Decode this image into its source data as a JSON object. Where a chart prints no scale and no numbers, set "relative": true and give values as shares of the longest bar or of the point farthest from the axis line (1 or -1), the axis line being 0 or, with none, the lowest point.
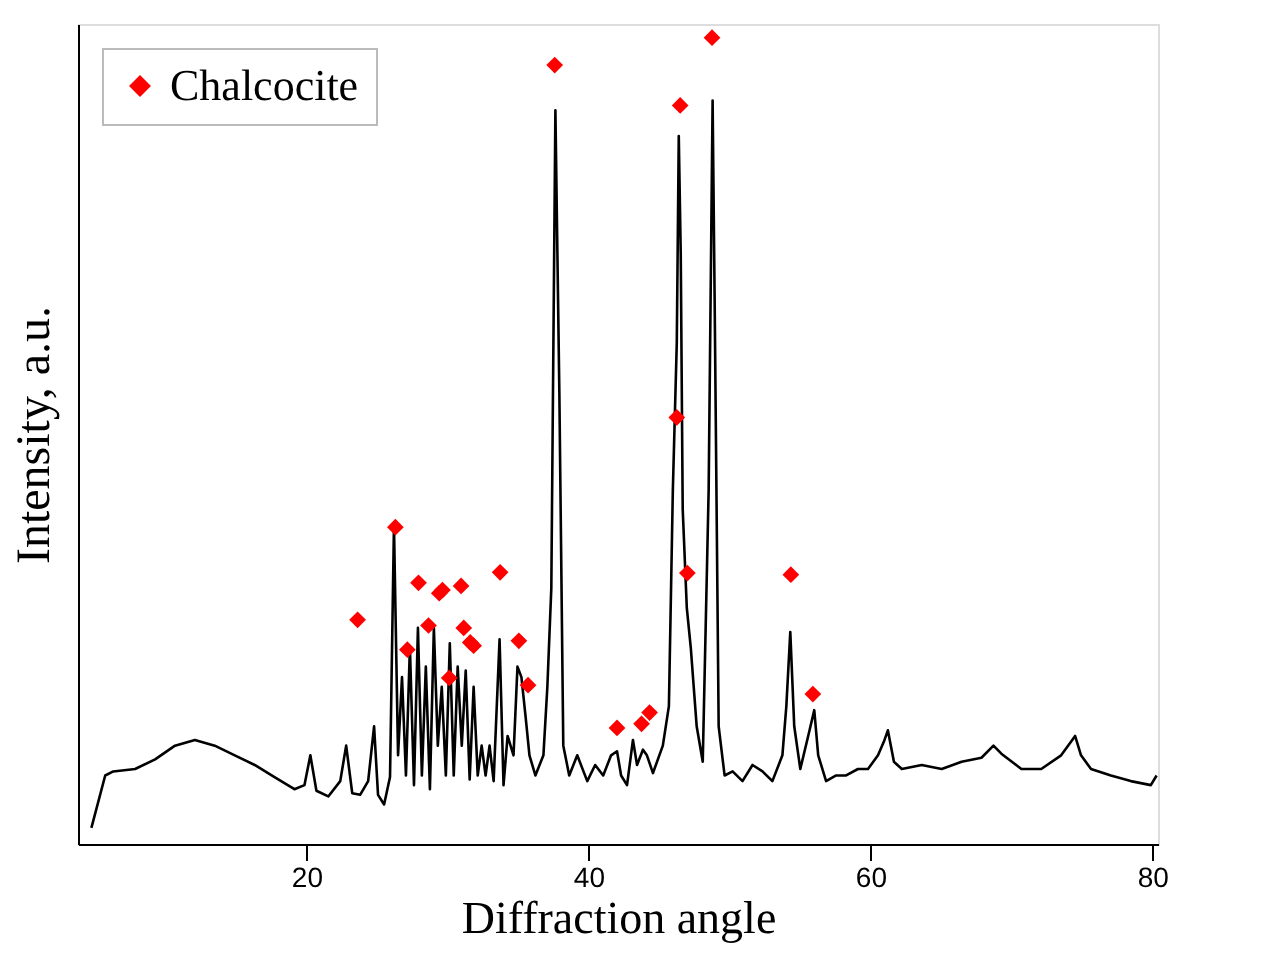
{
  "chart_data": {
    "type": "line",
    "relative": true,
    "xlabel": "Diffraction angle",
    "ylabel": "Intensity, a.u.",
    "xlim": [
      3.8,
      80.4
    ],
    "xticks": [
      20,
      40,
      60,
      80
    ],
    "tick_labels": "x",
    "grid": false,
    "legend": "top left",
    "series": [
      {
        "color": "#000000",
        "marker": "none",
        "line_style": "solid",
        "x": [
          4.75,
          5.73,
          6.3,
          7.85,
          9.27,
          10.68,
          12.09,
          13.5,
          14.92,
          16.33,
          17.74,
          19.15,
          19.86,
          20.28,
          20.71,
          21.55,
          22.4,
          22.82,
          23.25,
          23.81,
          24.38,
          24.8,
          25.08,
          25.51,
          25.93,
          26.21,
          26.5,
          26.78,
          27.06,
          27.34,
          27.63,
          27.91,
          28.19,
          28.47,
          28.76,
          29.04,
          29.32,
          29.6,
          29.89,
          30.17,
          30.45,
          30.73,
          31.02,
          31.3,
          31.58,
          31.86,
          32.15,
          32.43,
          32.71,
          32.99,
          33.28,
          33.7,
          33.98,
          34.27,
          34.69,
          34.97,
          35.25,
          35.54,
          35.82,
          36.24,
          36.81,
          37.09,
          37.37,
          37.66,
          37.94,
          38.22,
          38.64,
          39.21,
          39.92,
          40.48,
          41.05,
          41.61,
          42.03,
          42.32,
          42.74,
          43.16,
          43.45,
          43.87,
          44.15,
          44.58,
          45.28,
          45.71,
          45.99,
          46.27,
          46.41,
          46.55,
          46.69,
          46.98,
          47.26,
          47.68,
          48.11,
          48.53,
          48.81,
          48.95,
          49.24,
          49.66,
          50.23,
          50.93,
          51.64,
          52.35,
          53.05,
          53.76,
          54.04,
          54.32,
          54.6,
          55.03,
          55.59,
          56.02,
          56.3,
          56.86,
          57.57,
          58.28,
          59.12,
          59.83,
          60.54,
          60.96,
          61.24,
          61.67,
          62.23,
          63.64,
          65.06,
          66.47,
          67.88,
          68.73,
          69.29,
          70.71,
          72.12,
          73.53,
          74.24,
          74.52,
          74.94,
          75.65,
          77.06,
          78.47,
          79.89,
          80.3
        ],
        "values": [
          0.02,
          0.085,
          0.09,
          0.093,
          0.105,
          0.122,
          0.129,
          0.122,
          0.11,
          0.098,
          0.083,
          0.068,
          0.073,
          0.11,
          0.066,
          0.059,
          0.078,
          0.122,
          0.063,
          0.061,
          0.078,
          0.146,
          0.061,
          0.049,
          0.083,
          0.395,
          0.11,
          0.207,
          0.085,
          0.244,
          0.073,
          0.268,
          0.085,
          0.22,
          0.068,
          0.268,
          0.122,
          0.195,
          0.085,
          0.249,
          0.085,
          0.22,
          0.122,
          0.215,
          0.08,
          0.195,
          0.085,
          0.122,
          0.085,
          0.122,
          0.078,
          0.254,
          0.073,
          0.134,
          0.11,
          0.22,
          0.207,
          0.159,
          0.11,
          0.085,
          0.11,
          0.195,
          0.317,
          0.91,
          0.561,
          0.122,
          0.085,
          0.11,
          0.078,
          0.098,
          0.085,
          0.11,
          0.115,
          0.085,
          0.073,
          0.129,
          0.098,
          0.117,
          0.11,
          0.088,
          0.122,
          0.171,
          0.439,
          0.622,
          0.878,
          0.732,
          0.415,
          0.293,
          0.244,
          0.146,
          0.102,
          0.439,
          0.922,
          0.683,
          0.146,
          0.085,
          0.09,
          0.078,
          0.098,
          0.09,
          0.078,
          0.11,
          0.171,
          0.263,
          0.146,
          0.093,
          0.134,
          0.166,
          0.11,
          0.078,
          0.085,
          0.085,
          0.093,
          0.093,
          0.11,
          0.127,
          0.141,
          0.102,
          0.093,
          0.098,
          0.093,
          0.102,
          0.107,
          0.122,
          0.112,
          0.093,
          0.093,
          0.11,
          0.127,
          0.134,
          0.11,
          0.093,
          0.085,
          0.078,
          0.073,
          0.085
        ]
      },
      {
        "type": "scatter",
        "name": "Chalcocite",
        "color": "#ff0000",
        "marker": "diamond",
        "x": [
          23.63,
          26.31,
          27.16,
          27.95,
          28.66,
          29.42,
          29.65,
          30.13,
          30.97,
          31.16,
          31.62,
          31.86,
          33.74,
          35.07,
          35.72,
          37.61,
          42.03,
          43.77,
          44.34,
          46.27,
          46.51,
          47.02,
          48.77,
          54.36,
          55.92
        ],
        "values": [
          0.278,
          0.393,
          0.241,
          0.324,
          0.271,
          0.311,
          0.315,
          0.206,
          0.32,
          0.268,
          0.25,
          0.246,
          0.337,
          0.252,
          0.197,
          0.966,
          0.144,
          0.149,
          0.163,
          0.529,
          0.916,
          0.336,
          1,
          0.334,
          0.186
        ]
      }
    ]
  }
}
